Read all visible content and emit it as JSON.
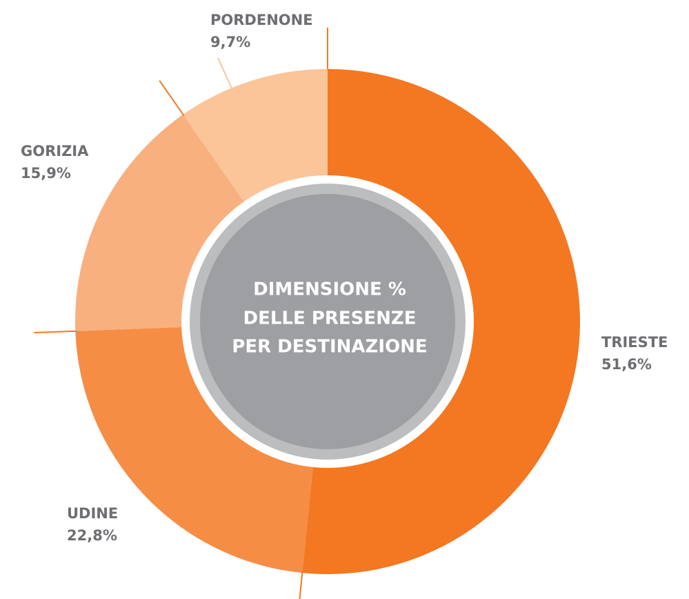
{
  "chart_data": {
    "type": "donut",
    "title": [
      "DIMENSIONE %",
      "DELLE PRESENZE",
      "PER DESTINAZIONE"
    ],
    "categories": [
      "TRIESTE",
      "UDINE",
      "GORIZIA",
      "PORDENONE"
    ],
    "values": [
      51.6,
      22.8,
      15.9,
      9.7
    ],
    "value_labels": [
      "51,6%",
      "22,8%",
      "15,9%",
      "9,7%"
    ],
    "colors": [
      "#f47721",
      "#f68d45",
      "#f9b07f",
      "#fbc499"
    ]
  }
}
